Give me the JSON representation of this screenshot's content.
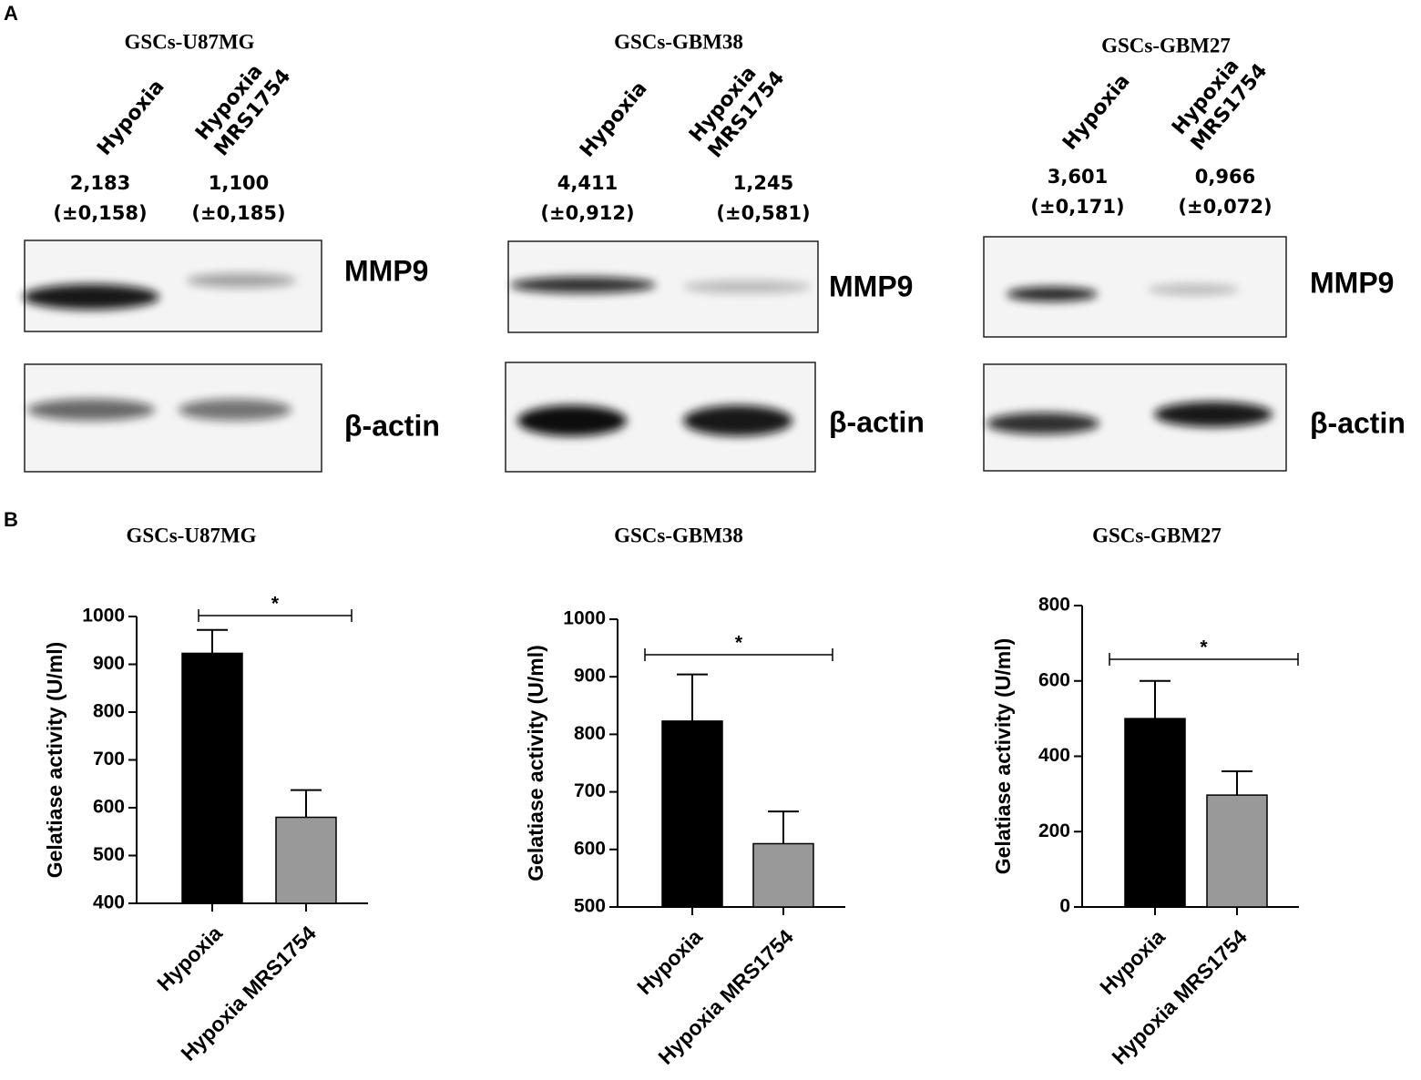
{
  "panel_a": {
    "label": "A",
    "blots": [
      {
        "title": "GSCs-U87MG",
        "lanes": [
          [
            "Hypoxia"
          ],
          [
            "Hypoxia",
            "MRS1754"
          ]
        ],
        "quant": [
          [
            "2,183",
            "(±0,158)"
          ],
          [
            "1,100",
            "(±0,185)"
          ]
        ],
        "bands": [
          "MMP9",
          "β-actin"
        ]
      },
      {
        "title": "GSCs-GBM38",
        "lanes": [
          [
            "Hypoxia"
          ],
          [
            "Hypoxia",
            "MRS1754"
          ]
        ],
        "quant": [
          [
            "4,411",
            "(±0,912)"
          ],
          [
            "1,245",
            "(±0,581)"
          ]
        ],
        "bands": [
          "MMP9",
          "β-actin"
        ]
      },
      {
        "title": "GSCs-GBM27",
        "lanes": [
          [
            "Hypoxia"
          ],
          [
            "Hypoxia",
            "MRS1754"
          ]
        ],
        "quant": [
          [
            "3,601",
            "(±0,171)"
          ],
          [
            "0,966",
            "(±0,072)"
          ]
        ],
        "bands": [
          "MMP9",
          "β-actin"
        ]
      }
    ]
  },
  "panel_b": {
    "label": "B"
  },
  "chart_data": [
    {
      "type": "bar",
      "title": "GSCs-U87MG",
      "y_label": "Gelatiase activity (U/ml)",
      "categories": [
        "Hypoxia",
        "Hypoxia MRS1754"
      ],
      "values": [
        923,
        580
      ],
      "errors": [
        49,
        57
      ],
      "colors": [
        "#000000",
        "#999999"
      ],
      "ylim": [
        400,
        1000
      ],
      "yticks": [
        400,
        500,
        600,
        700,
        800,
        900,
        1000
      ],
      "annotation": "*"
    },
    {
      "type": "bar",
      "title": "GSCs-GBM38",
      "y_label": "Gelatiase activity (U/ml)",
      "categories": [
        "Hypoxia",
        "Hypoxia MRS1754"
      ],
      "values": [
        823,
        610
      ],
      "errors": [
        81,
        56
      ],
      "colors": [
        "#000000",
        "#999999"
      ],
      "ylim": [
        500,
        1000
      ],
      "yticks": [
        500,
        600,
        700,
        800,
        900,
        1000
      ],
      "annotation": "*"
    },
    {
      "type": "bar",
      "title": "GSCs-GBM27",
      "y_label": "Gelatiase activity (U/ml)",
      "categories": [
        "Hypoxia",
        "Hypoxia MRS1754"
      ],
      "values": [
        500,
        297
      ],
      "errors": [
        100,
        63
      ],
      "colors": [
        "#000000",
        "#999999"
      ],
      "ylim": [
        0,
        800
      ],
      "yticks": [
        0,
        200,
        400,
        600,
        800
      ],
      "annotation": "*"
    }
  ]
}
